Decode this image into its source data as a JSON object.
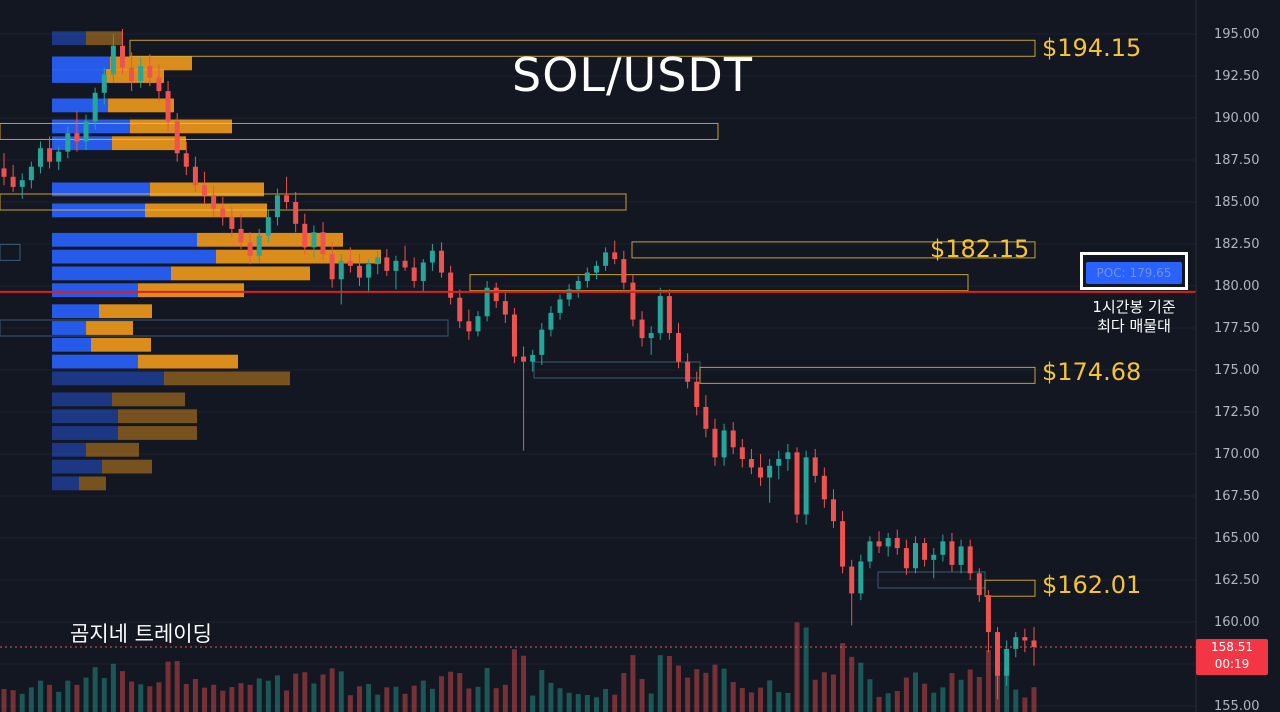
{
  "title": "SOL/USDT",
  "brand": "곰지네 트레이딩",
  "poc": {
    "label": "POC: 179.65",
    "value": 179.65,
    "note_line1": "1시간봉 기준",
    "note_line2": "최다 매물대"
  },
  "current_price": {
    "value": 158.51,
    "price_text": "158.51",
    "countdown": "00:19"
  },
  "levels": [
    {
      "text": "$194.15",
      "value": 194.15
    },
    {
      "text": "$182.15",
      "value": 182.15
    },
    {
      "text": "$174.68",
      "value": 174.68
    },
    {
      "text": "$162.01",
      "value": 162.01
    }
  ],
  "colors": {
    "background": "#131722",
    "up": "#26a69a",
    "down": "#ef5350",
    "level": "#f5c238",
    "poc_line": "#e01e1e",
    "vp_buy": "#2962ff",
    "vp_sell": "#f29a1b"
  },
  "chart_data": {
    "type": "candlestick",
    "y_axis": {
      "ticks": [
        "195.00",
        "192.50",
        "190.00",
        "187.50",
        "185.00",
        "182.50",
        "180.00",
        "177.50",
        "175.00",
        "172.50",
        "170.00",
        "167.50",
        "165.00",
        "162.50",
        "160.00",
        "157.50",
        "155.00"
      ],
      "range": [
        154.9,
        196.1
      ],
      "side": "right"
    },
    "volume_profile": [
      {
        "price": 194.75,
        "buy": 0.34,
        "sell": 0.36,
        "dim": true
      },
      {
        "price": 193.25,
        "buy": 0.58,
        "sell": 0.82
      },
      {
        "price": 192.5,
        "buy": 0.54,
        "sell": 0.58
      },
      {
        "price": 190.75,
        "buy": 0.56,
        "sell": 0.66
      },
      {
        "price": 189.5,
        "buy": 0.78,
        "sell": 1.02
      },
      {
        "price": 188.5,
        "buy": 0.6,
        "sell": 0.74
      },
      {
        "price": 185.75,
        "buy": 0.98,
        "sell": 1.14
      },
      {
        "price": 184.5,
        "buy": 0.93,
        "sell": 1.22
      },
      {
        "price": 182.75,
        "buy": 1.45,
        "sell": 1.46
      },
      {
        "price": 181.75,
        "buy": 1.64,
        "sell": 1.65
      },
      {
        "price": 180.75,
        "buy": 1.19,
        "sell": 1.39
      },
      {
        "price": 179.75,
        "buy": 0.86,
        "sell": 1.06
      },
      {
        "price": 178.5,
        "buy": 0.47,
        "sell": 0.53
      },
      {
        "price": 177.5,
        "buy": 0.34,
        "sell": 0.47
      },
      {
        "price": 176.5,
        "buy": 0.39,
        "sell": 0.6
      },
      {
        "price": 175.5,
        "buy": 0.86,
        "sell": 1.0
      },
      {
        "price": 174.5,
        "buy": 1.12,
        "sell": 1.26,
        "dim": true
      },
      {
        "price": 173.25,
        "buy": 0.6,
        "sell": 0.73,
        "dim": true
      },
      {
        "price": 172.25,
        "buy": 0.66,
        "sell": 0.79,
        "dim": true
      },
      {
        "price": 171.25,
        "buy": 0.66,
        "sell": 0.79,
        "dim": true
      },
      {
        "price": 170.25,
        "buy": 0.34,
        "sell": 0.53,
        "dim": true
      },
      {
        "price": 169.25,
        "buy": 0.5,
        "sell": 0.5,
        "dim": true
      },
      {
        "price": 168.25,
        "buy": 0.27,
        "sell": 0.27,
        "dim": true
      }
    ],
    "candles": [
      {
        "o": 187.0,
        "h": 187.9,
        "l": 186.0,
        "c": 186.5
      },
      {
        "o": 186.5,
        "h": 187.2,
        "l": 185.6,
        "c": 185.9
      },
      {
        "o": 185.9,
        "h": 186.7,
        "l": 185.2,
        "c": 186.3
      },
      {
        "o": 186.3,
        "h": 187.4,
        "l": 185.8,
        "c": 187.1
      },
      {
        "o": 187.1,
        "h": 188.6,
        "l": 186.7,
        "c": 188.2
      },
      {
        "o": 188.2,
        "h": 188.9,
        "l": 187.0,
        "c": 187.4
      },
      {
        "o": 187.4,
        "h": 188.3,
        "l": 186.9,
        "c": 188.0
      },
      {
        "o": 188.0,
        "h": 189.5,
        "l": 187.6,
        "c": 189.1
      },
      {
        "o": 189.1,
        "h": 190.4,
        "l": 188.0,
        "c": 188.6
      },
      {
        "o": 188.6,
        "h": 190.2,
        "l": 188.1,
        "c": 189.8
      },
      {
        "o": 189.8,
        "h": 191.8,
        "l": 189.3,
        "c": 191.5
      },
      {
        "o": 191.5,
        "h": 193.0,
        "l": 190.8,
        "c": 192.6
      },
      {
        "o": 192.6,
        "h": 195.0,
        "l": 192.1,
        "c": 194.3
      },
      {
        "o": 194.3,
        "h": 195.3,
        "l": 192.6,
        "c": 193.0
      },
      {
        "o": 193.0,
        "h": 193.9,
        "l": 191.6,
        "c": 192.2
      },
      {
        "o": 192.2,
        "h": 193.6,
        "l": 191.8,
        "c": 193.1
      },
      {
        "o": 193.1,
        "h": 193.8,
        "l": 191.9,
        "c": 192.4
      },
      {
        "o": 192.4,
        "h": 193.2,
        "l": 191.0,
        "c": 191.6
      },
      {
        "o": 191.6,
        "h": 192.2,
        "l": 189.2,
        "c": 189.8
      },
      {
        "o": 189.8,
        "h": 190.3,
        "l": 187.4,
        "c": 187.9
      },
      {
        "o": 187.9,
        "h": 188.6,
        "l": 186.6,
        "c": 187.1
      },
      {
        "o": 187.1,
        "h": 187.7,
        "l": 185.6,
        "c": 186.0
      },
      {
        "o": 186.0,
        "h": 186.8,
        "l": 184.9,
        "c": 185.4
      },
      {
        "o": 185.4,
        "h": 186.0,
        "l": 184.1,
        "c": 184.6
      },
      {
        "o": 184.6,
        "h": 185.3,
        "l": 183.6,
        "c": 184.1
      },
      {
        "o": 184.1,
        "h": 184.7,
        "l": 182.9,
        "c": 183.4
      },
      {
        "o": 183.4,
        "h": 184.3,
        "l": 182.2,
        "c": 182.6
      },
      {
        "o": 182.6,
        "h": 183.2,
        "l": 181.3,
        "c": 181.8
      },
      {
        "o": 181.8,
        "h": 183.4,
        "l": 181.4,
        "c": 183.0
      },
      {
        "o": 183.0,
        "h": 184.5,
        "l": 182.6,
        "c": 184.1
      },
      {
        "o": 184.1,
        "h": 185.8,
        "l": 183.6,
        "c": 185.4
      },
      {
        "o": 185.4,
        "h": 186.5,
        "l": 184.6,
        "c": 185.0
      },
      {
        "o": 185.0,
        "h": 185.6,
        "l": 183.2,
        "c": 183.7
      },
      {
        "o": 183.7,
        "h": 184.3,
        "l": 181.9,
        "c": 182.3
      },
      {
        "o": 182.3,
        "h": 183.6,
        "l": 181.7,
        "c": 183.2
      },
      {
        "o": 183.2,
        "h": 183.8,
        "l": 181.5,
        "c": 181.9
      },
      {
        "o": 181.9,
        "h": 182.6,
        "l": 179.9,
        "c": 180.4
      },
      {
        "o": 180.4,
        "h": 181.9,
        "l": 178.9,
        "c": 181.5
      },
      {
        "o": 181.5,
        "h": 182.3,
        "l": 180.8,
        "c": 181.2
      },
      {
        "o": 181.2,
        "h": 181.9,
        "l": 180.0,
        "c": 180.5
      },
      {
        "o": 180.5,
        "h": 181.6,
        "l": 179.6,
        "c": 181.3
      },
      {
        "o": 181.3,
        "h": 182.1,
        "l": 180.7,
        "c": 181.7
      },
      {
        "o": 181.7,
        "h": 182.2,
        "l": 180.6,
        "c": 180.9
      },
      {
        "o": 180.9,
        "h": 181.8,
        "l": 179.8,
        "c": 181.5
      },
      {
        "o": 181.5,
        "h": 182.4,
        "l": 180.9,
        "c": 181.1
      },
      {
        "o": 181.1,
        "h": 181.7,
        "l": 179.9,
        "c": 180.3
      },
      {
        "o": 180.3,
        "h": 181.6,
        "l": 179.7,
        "c": 181.4
      },
      {
        "o": 181.4,
        "h": 182.5,
        "l": 180.9,
        "c": 182.1
      },
      {
        "o": 182.1,
        "h": 182.6,
        "l": 180.5,
        "c": 180.8
      },
      {
        "o": 180.8,
        "h": 181.2,
        "l": 178.9,
        "c": 179.3
      },
      {
        "o": 179.3,
        "h": 179.8,
        "l": 177.5,
        "c": 177.9
      },
      {
        "o": 177.9,
        "h": 178.6,
        "l": 176.8,
        "c": 177.3
      },
      {
        "o": 177.3,
        "h": 178.5,
        "l": 177.0,
        "c": 178.2
      },
      {
        "o": 178.2,
        "h": 180.3,
        "l": 177.9,
        "c": 179.9
      },
      {
        "o": 179.9,
        "h": 180.2,
        "l": 178.7,
        "c": 179.1
      },
      {
        "o": 179.1,
        "h": 179.7,
        "l": 177.8,
        "c": 178.3
      },
      {
        "o": 178.3,
        "h": 178.7,
        "l": 175.4,
        "c": 175.8
      },
      {
        "o": 175.8,
        "h": 176.4,
        "l": 170.2,
        "c": 175.5
      },
      {
        "o": 175.5,
        "h": 176.2,
        "l": 174.9,
        "c": 175.9
      },
      {
        "o": 175.9,
        "h": 177.8,
        "l": 175.3,
        "c": 177.4
      },
      {
        "o": 177.4,
        "h": 178.8,
        "l": 177.0,
        "c": 178.4
      },
      {
        "o": 178.4,
        "h": 179.5,
        "l": 178.0,
        "c": 179.2
      },
      {
        "o": 179.2,
        "h": 180.1,
        "l": 178.8,
        "c": 179.8
      },
      {
        "o": 179.8,
        "h": 180.6,
        "l": 179.3,
        "c": 180.3
      },
      {
        "o": 180.3,
        "h": 181.1,
        "l": 179.9,
        "c": 180.8
      },
      {
        "o": 180.8,
        "h": 181.5,
        "l": 180.4,
        "c": 181.2
      },
      {
        "o": 181.2,
        "h": 182.3,
        "l": 180.9,
        "c": 182.0
      },
      {
        "o": 182.0,
        "h": 182.7,
        "l": 181.3,
        "c": 181.6
      },
      {
        "o": 181.6,
        "h": 182.1,
        "l": 179.8,
        "c": 180.2
      },
      {
        "o": 180.2,
        "h": 180.7,
        "l": 177.6,
        "c": 178.0
      },
      {
        "o": 178.0,
        "h": 178.5,
        "l": 176.4,
        "c": 176.9
      },
      {
        "o": 176.9,
        "h": 177.6,
        "l": 175.9,
        "c": 177.2
      },
      {
        "o": 177.2,
        "h": 179.9,
        "l": 176.8,
        "c": 179.4
      },
      {
        "o": 179.4,
        "h": 179.8,
        "l": 176.8,
        "c": 177.2
      },
      {
        "o": 177.2,
        "h": 177.8,
        "l": 175.1,
        "c": 175.5
      },
      {
        "o": 175.5,
        "h": 176.0,
        "l": 173.9,
        "c": 174.3
      },
      {
        "o": 174.3,
        "h": 174.9,
        "l": 172.3,
        "c": 172.8
      },
      {
        "o": 172.8,
        "h": 173.5,
        "l": 171.0,
        "c": 171.5
      },
      {
        "o": 171.5,
        "h": 172.1,
        "l": 169.3,
        "c": 169.8
      },
      {
        "o": 169.8,
        "h": 171.8,
        "l": 169.3,
        "c": 171.4
      },
      {
        "o": 171.4,
        "h": 171.9,
        "l": 170.0,
        "c": 170.4
      },
      {
        "o": 170.4,
        "h": 170.9,
        "l": 169.2,
        "c": 169.7
      },
      {
        "o": 169.7,
        "h": 170.3,
        "l": 168.8,
        "c": 169.2
      },
      {
        "o": 169.2,
        "h": 170.0,
        "l": 168.1,
        "c": 168.6
      },
      {
        "o": 168.6,
        "h": 169.7,
        "l": 167.1,
        "c": 169.3
      },
      {
        "o": 169.3,
        "h": 170.2,
        "l": 168.5,
        "c": 169.7
      },
      {
        "o": 169.7,
        "h": 170.6,
        "l": 169.0,
        "c": 170.1
      },
      {
        "o": 170.1,
        "h": 170.4,
        "l": 165.9,
        "c": 166.4
      },
      {
        "o": 166.4,
        "h": 170.2,
        "l": 165.8,
        "c": 169.8
      },
      {
        "o": 169.8,
        "h": 170.3,
        "l": 168.3,
        "c": 168.7
      },
      {
        "o": 168.7,
        "h": 169.2,
        "l": 166.8,
        "c": 167.3
      },
      {
        "o": 167.3,
        "h": 167.9,
        "l": 165.6,
        "c": 166.0
      },
      {
        "o": 166.0,
        "h": 166.6,
        "l": 162.9,
        "c": 163.3
      },
      {
        "o": 163.3,
        "h": 163.7,
        "l": 159.8,
        "c": 161.7
      },
      {
        "o": 161.7,
        "h": 164.0,
        "l": 161.3,
        "c": 163.6
      },
      {
        "o": 163.6,
        "h": 165.1,
        "l": 163.2,
        "c": 164.8
      },
      {
        "o": 164.8,
        "h": 165.4,
        "l": 164.1,
        "c": 164.5
      },
      {
        "o": 164.5,
        "h": 165.3,
        "l": 163.9,
        "c": 165.0
      },
      {
        "o": 165.0,
        "h": 165.5,
        "l": 164.0,
        "c": 164.4
      },
      {
        "o": 164.4,
        "h": 164.9,
        "l": 162.8,
        "c": 163.2
      },
      {
        "o": 163.2,
        "h": 165.1,
        "l": 162.9,
        "c": 164.7
      },
      {
        "o": 164.7,
        "h": 165.0,
        "l": 163.3,
        "c": 163.7
      },
      {
        "o": 163.7,
        "h": 164.4,
        "l": 162.6,
        "c": 164.0
      },
      {
        "o": 164.0,
        "h": 165.2,
        "l": 163.6,
        "c": 164.8
      },
      {
        "o": 164.8,
        "h": 165.3,
        "l": 163.0,
        "c": 163.4
      },
      {
        "o": 163.4,
        "h": 164.9,
        "l": 162.9,
        "c": 164.5
      },
      {
        "o": 164.5,
        "h": 164.9,
        "l": 162.5,
        "c": 162.9
      },
      {
        "o": 162.9,
        "h": 163.2,
        "l": 161.2,
        "c": 161.6
      },
      {
        "o": 161.6,
        "h": 161.9,
        "l": 158.2,
        "c": 159.4
      },
      {
        "o": 159.4,
        "h": 159.7,
        "l": 155.4,
        "c": 156.8
      },
      {
        "o": 156.8,
        "h": 158.9,
        "l": 156.2,
        "c": 158.4
      },
      {
        "o": 158.4,
        "h": 159.4,
        "l": 157.9,
        "c": 159.1
      },
      {
        "o": 159.1,
        "h": 159.6,
        "l": 158.2,
        "c": 158.9
      },
      {
        "o": 158.9,
        "h": 159.7,
        "l": 157.4,
        "c": 158.51
      }
    ]
  }
}
